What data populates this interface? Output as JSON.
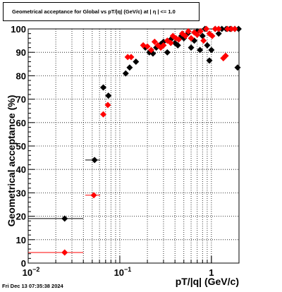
{
  "title": "Geometrical acceptance for Global vs pT/|q| (GeV/c) at |  η  | <= 1.0",
  "timestamp": "Fri Dec 13 07:35:38 2024",
  "chart_data": {
    "type": "scatter",
    "xlabel": "pT/|q| (GeV/c)",
    "ylabel": "Geometrical acceptance (%)",
    "xscale": "log",
    "xlim": [
      0.01,
      2.0
    ],
    "ylim": [
      0,
      100
    ],
    "x_tick_labels": [
      {
        "value": 0.01,
        "base": "10",
        "exp": "−2"
      },
      {
        "value": 0.1,
        "base": "10",
        "exp": "−1"
      },
      {
        "value": 1,
        "base": "1",
        "exp": ""
      }
    ],
    "y_tick_labels": [
      "0",
      "10",
      "20",
      "30",
      "40",
      "50",
      "60",
      "70",
      "80",
      "90",
      "100"
    ],
    "grid": true,
    "colors": {
      "series1": "#000000",
      "series2": "#ff0000"
    },
    "series": [
      {
        "color": "#000000",
        "points": [
          {
            "x": 0.025,
            "y": 19,
            "xerr": [
              0.01,
              0.04
            ]
          },
          {
            "x": 0.053,
            "y": 44,
            "xerr": [
              0.042,
              0.061
            ]
          },
          {
            "x": 0.066,
            "y": 75
          },
          {
            "x": 0.075,
            "y": 71.5
          },
          {
            "x": 0.116,
            "y": 81
          },
          {
            "x": 0.128,
            "y": 83.5
          },
          {
            "x": 0.15,
            "y": 86
          },
          {
            "x": 0.19,
            "y": 92
          },
          {
            "x": 0.21,
            "y": 90
          },
          {
            "x": 0.23,
            "y": 89.5
          },
          {
            "x": 0.25,
            "y": 92
          },
          {
            "x": 0.28,
            "y": 93.5
          },
          {
            "x": 0.3,
            "y": 94.5
          },
          {
            "x": 0.33,
            "y": 90
          },
          {
            "x": 0.36,
            "y": 95.5
          },
          {
            "x": 0.4,
            "y": 94
          },
          {
            "x": 0.43,
            "y": 93
          },
          {
            "x": 0.47,
            "y": 97
          },
          {
            "x": 0.5,
            "y": 96
          },
          {
            "x": 0.55,
            "y": 98
          },
          {
            "x": 0.6,
            "y": 92
          },
          {
            "x": 0.65,
            "y": 95
          },
          {
            "x": 0.7,
            "y": 99
          },
          {
            "x": 0.75,
            "y": 91
          },
          {
            "x": 0.8,
            "y": 97
          },
          {
            "x": 0.85,
            "y": 100
          },
          {
            "x": 0.9,
            "y": 93
          },
          {
            "x": 0.95,
            "y": 86.5
          },
          {
            "x": 1.0,
            "y": 91
          },
          {
            "x": 1.1,
            "y": 100
          },
          {
            "x": 1.2,
            "y": 98
          },
          {
            "x": 1.3,
            "y": 100
          },
          {
            "x": 1.45,
            "y": 100
          },
          {
            "x": 1.6,
            "y": 100
          },
          {
            "x": 1.8,
            "y": 100
          },
          {
            "x": 1.93,
            "y": 83.5
          },
          {
            "x": 1.98,
            "y": 100
          }
        ]
      },
      {
        "color": "#ff0000",
        "points": [
          {
            "x": 0.025,
            "y": 4.5,
            "xerr": [
              0.01,
              0.04
            ]
          },
          {
            "x": 0.052,
            "y": 29,
            "xerr": [
              0.042,
              0.061
            ]
          },
          {
            "x": 0.066,
            "y": 63.5
          },
          {
            "x": 0.074,
            "y": 67.5
          },
          {
            "x": 0.122,
            "y": 88
          },
          {
            "x": 0.133,
            "y": 88
          },
          {
            "x": 0.18,
            "y": 93
          },
          {
            "x": 0.2,
            "y": 92.5
          },
          {
            "x": 0.22,
            "y": 91
          },
          {
            "x": 0.24,
            "y": 94.5
          },
          {
            "x": 0.26,
            "y": 93
          },
          {
            "x": 0.28,
            "y": 92
          },
          {
            "x": 0.3,
            "y": 93
          },
          {
            "x": 0.33,
            "y": 95
          },
          {
            "x": 0.36,
            "y": 94
          },
          {
            "x": 0.38,
            "y": 97
          },
          {
            "x": 0.41,
            "y": 96
          },
          {
            "x": 0.44,
            "y": 95.5
          },
          {
            "x": 0.48,
            "y": 98
          },
          {
            "x": 0.52,
            "y": 97
          },
          {
            "x": 0.56,
            "y": 99
          },
          {
            "x": 0.6,
            "y": 96
          },
          {
            "x": 0.65,
            "y": 98.5
          },
          {
            "x": 0.7,
            "y": 97.5
          },
          {
            "x": 0.76,
            "y": 99
          },
          {
            "x": 0.82,
            "y": 95
          },
          {
            "x": 0.88,
            "y": 100
          },
          {
            "x": 0.95,
            "y": 98
          },
          {
            "x": 1.02,
            "y": 97
          },
          {
            "x": 1.1,
            "y": 100
          },
          {
            "x": 1.2,
            "y": 100
          },
          {
            "x": 1.35,
            "y": 87.5
          },
          {
            "x": 1.43,
            "y": 88.5
          },
          {
            "x": 1.5,
            "y": 100
          },
          {
            "x": 1.65,
            "y": 100
          },
          {
            "x": 1.8,
            "y": 100
          }
        ]
      }
    ]
  }
}
